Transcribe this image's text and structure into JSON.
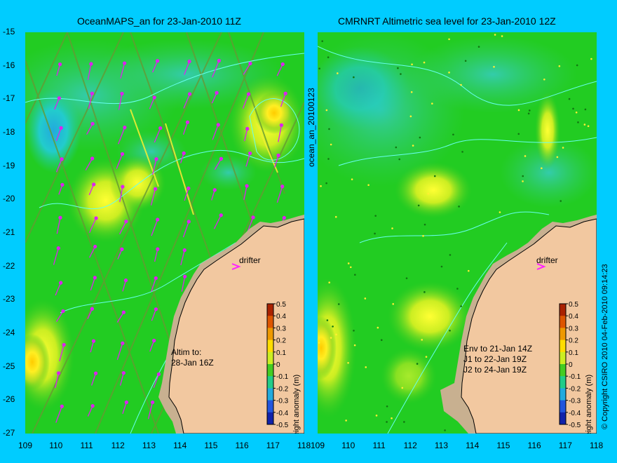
{
  "left_panel": {
    "title": "OceanMAPS_an for 23-Jan-2010 11Z",
    "annotation": [
      "Altim to:",
      "28-Jan 16Z"
    ],
    "drifter_label": "drifter"
  },
  "right_panel": {
    "title": "CMRNRT Altimetric sea level  for 23-Jan-2010 12Z",
    "annotation": [
      "Env to 21-Jan 14Z",
      "J1 to 22-Jan 19Z",
      "J2 to 24-Jan 19Z"
    ],
    "drifter_label": "drifter"
  },
  "side_label": "ocean_an_20100123",
  "copyright": "© Copyright CSIRO 2010  04-Feb-2010 09:14:23",
  "colorbar": {
    "label": "height anomaly (m)",
    "ticks": [
      "0.5",
      "0.4",
      "0.3",
      "0.2",
      "0.1",
      "0",
      "-0.1",
      "-0.2",
      "-0.3",
      "-0.4",
      "-0.5"
    ]
  },
  "axes": {
    "lat_ticks": [
      "-15",
      "-16",
      "-17",
      "-18",
      "-19",
      "-20",
      "-21",
      "-22",
      "-23",
      "-24",
      "-25",
      "-26",
      "-27"
    ],
    "lon_ticks": [
      "109",
      "110",
      "111",
      "112",
      "113",
      "114",
      "115",
      "116",
      "117",
      "118"
    ],
    "lon_range": [
      109,
      118
    ],
    "lat_range": [
      -27,
      -15
    ]
  },
  "colors": {
    "background": "#00ccff",
    "land": "#f2c8a0",
    "shelf": "#c8b090",
    "ocean_base": "#22cc22",
    "drifter": "#ff22ff"
  }
}
